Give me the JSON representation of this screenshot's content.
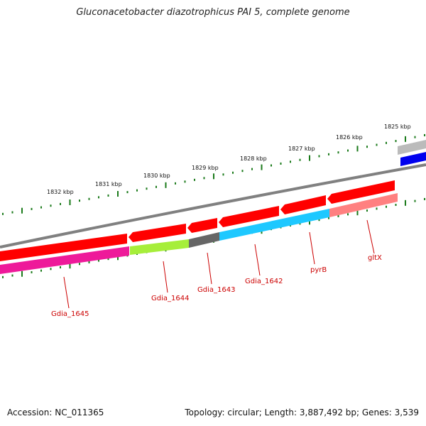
{
  "title": "Gluconacetobacter diazotrophicus PAI 5, complete genome",
  "footer": {
    "accession": "Accession: NC_011365",
    "summary": "Topology: circular; Length: 3,887,492 bp; Genes: 3,539"
  },
  "scale_labels": [
    "1825 kbp",
    "1826 kbp",
    "1827 kbp",
    "1828 kbp",
    "1829 kbp",
    "1830 kbp",
    "1831 kbp",
    "1832 kbp"
  ],
  "gene_labels": [
    "gltX",
    "pyrB",
    "Gdia_1642",
    "Gdia_1643",
    "Gdia_1644",
    "Gdia_1645"
  ],
  "colors": {
    "backbone": "#808080",
    "tick": "#1a7a1a",
    "cds": "#ff0000",
    "label": "#cc0000",
    "blue": "#0000ee",
    "cyan": "#1ec8ff",
    "pink": "#ff8080",
    "magenta": "#ee1a9a",
    "lime": "#a6ee3a",
    "darkgray": "#666666",
    "lightgray": "#bbbbbb"
  }
}
